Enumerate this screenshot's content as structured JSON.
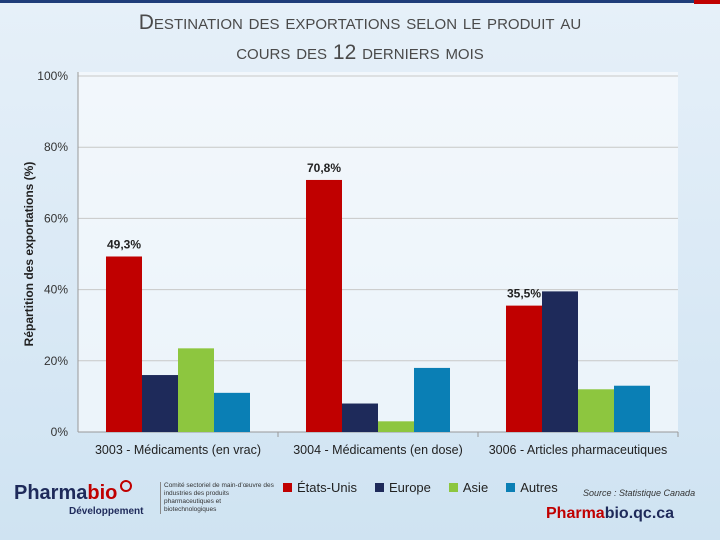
{
  "title": {
    "line1": "Destination des exportations selon le produit au",
    "line2": "cours des 12 derniers mois"
  },
  "chart_data": {
    "type": "bar",
    "title": "Destination des exportations selon le produit au cours des 12 derniers mois",
    "ylabel": "Répartition des exportations (%)",
    "xlabel": "",
    "ylim": [
      0,
      100
    ],
    "yticks": [
      "0%",
      "20%",
      "40%",
      "60%",
      "80%",
      "100%"
    ],
    "ytick_values": [
      0,
      20,
      40,
      60,
      80,
      100
    ],
    "categories": [
      "3003 - Médicaments (en vrac)",
      "3004 - Médicaments (en dose)",
      "3006 - Articles pharmaceutiques"
    ],
    "series": [
      {
        "name": "États-Unis",
        "color": "#c00000",
        "values": [
          49.3,
          70.8,
          35.5
        ]
      },
      {
        "name": "Europe",
        "color": "#1e2a5a",
        "values": [
          16.0,
          8.0,
          39.5
        ]
      },
      {
        "name": "Asie",
        "color": "#8dc63f",
        "values": [
          23.5,
          3.0,
          12.0
        ]
      },
      {
        "name": "Autres",
        "color": "#0a7fb5",
        "values": [
          11.0,
          18.0,
          13.0
        ]
      }
    ],
    "data_labels": [
      {
        "category": 0,
        "series": 0,
        "text": "49,3%"
      },
      {
        "category": 1,
        "series": 0,
        "text": "70,8%"
      },
      {
        "category": 2,
        "series": 0,
        "text": "35,5%"
      }
    ],
    "grid": true,
    "legend_position": "bottom"
  },
  "legend": {
    "items": [
      {
        "label": "États-Unis",
        "color": "#c00000"
      },
      {
        "label": "Europe",
        "color": "#1e2a5a"
      },
      {
        "label": "Asie",
        "color": "#8dc63f"
      },
      {
        "label": "Autres",
        "color": "#0a7fb5"
      }
    ]
  },
  "source": "Source : Statistique Canada",
  "footer": {
    "site_red": "Pharma",
    "site_rest": "bio.qc.ca"
  },
  "logo": {
    "word_blue": "Pharma",
    "word_red": "bio",
    "subtitle": "Développement",
    "committee": "Comité sectoriel de main-d’œuvre des industries des produits pharmaceutiques et biotechnologiques"
  }
}
